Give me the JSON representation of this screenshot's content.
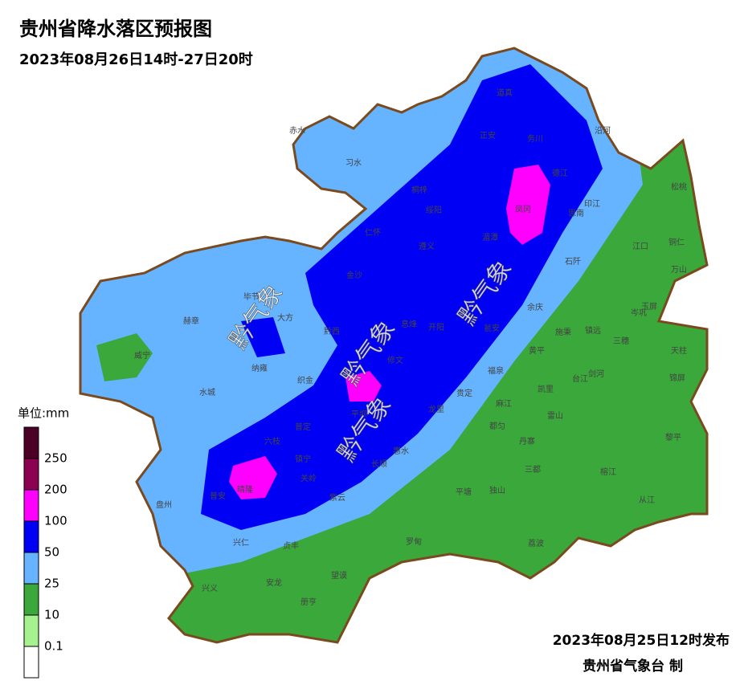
{
  "header": {
    "title": "贵州省降水落区预报图",
    "subtitle": "2023年08月26日14时-27日20时"
  },
  "legend": {
    "unit": "单位:mm",
    "thresholds": [
      250,
      200,
      100,
      50,
      25,
      10,
      0.1
    ],
    "colors": [
      "#4d0026",
      "#8b0050",
      "#ff00ff",
      "#0000f5",
      "#66b3ff",
      "#3aa83a",
      "#a6f28f",
      "#ffffff"
    ]
  },
  "counties": [
    "道真",
    "正安",
    "务川",
    "沿河",
    "赤水",
    "习水",
    "桐梓",
    "德江",
    "松桃",
    "绥阳",
    "凤冈",
    "思南",
    "印江",
    "仁怀",
    "湄潭",
    "遵义",
    "江口",
    "铜仁",
    "万山",
    "石阡",
    "金沙",
    "毕节",
    "大方",
    "余庆",
    "岑巩",
    "玉屏",
    "赫章",
    "黔西",
    "息烽",
    "开阳",
    "瓮安",
    "施秉",
    "镇远",
    "三穗",
    "天柱",
    "威宁",
    "修文",
    "黄平",
    "织金",
    "纳雍",
    "福泉",
    "台江",
    "剑河",
    "锦屏",
    "水城",
    "凯里",
    "麻江",
    "龙里",
    "贵定",
    "雷山",
    "黎平",
    "普定",
    "平坝",
    "都匀",
    "丹寨",
    "六枝",
    "镇宁",
    "惠水",
    "长顺",
    "三都",
    "榕江",
    "关岭",
    "紫云",
    "盘州",
    "普安",
    "晴隆",
    "平塘",
    "独山",
    "从江",
    "兴仁",
    "贞丰",
    "罗甸",
    "荔波",
    "兴义",
    "安龙",
    "望谟",
    "册亨"
  ],
  "watermarks": [
    "黔气象",
    "黔气象",
    "黔气象",
    "黔气象"
  ],
  "footer": {
    "issued": "2023年08月25日12时发布",
    "issuer": "贵州省气象台 制"
  }
}
